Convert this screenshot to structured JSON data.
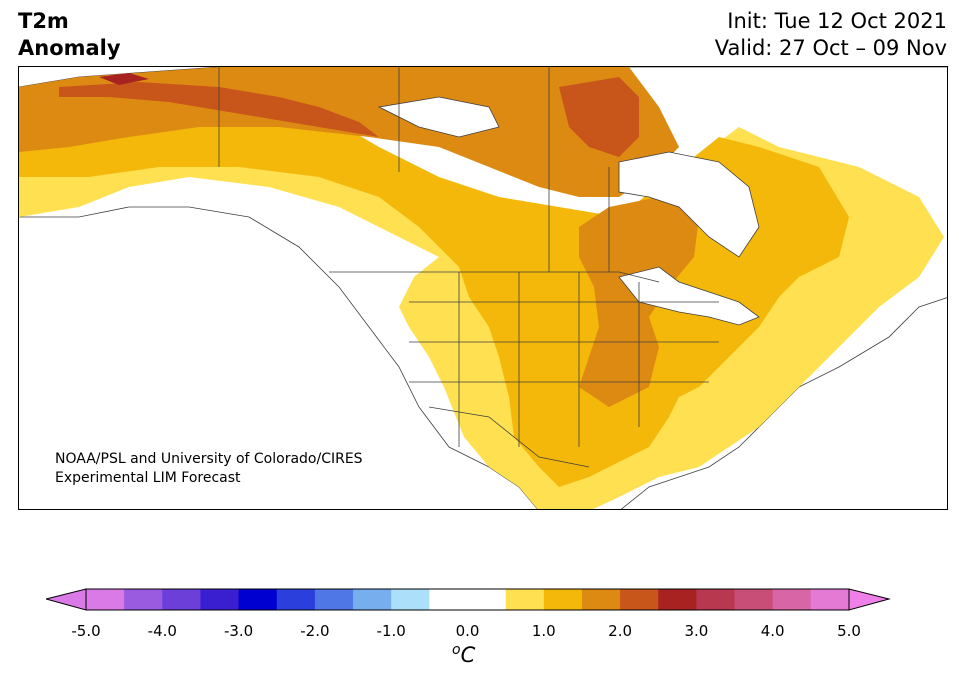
{
  "header": {
    "title_line1": "T2m",
    "title_line2": "Anomaly",
    "init": "Init: Tue 12 Oct 2021",
    "valid": "Valid: 27 Oct – 09 Nov"
  },
  "credit": {
    "line1": "NOAA/PSL and University of Colorado/CIRES",
    "line2": "Experimental LIM Forecast"
  },
  "colorbar": {
    "unit": "C",
    "unit_prefix": "o",
    "bins": [
      {
        "from": -5.0,
        "to": -4.5,
        "color": "#d97ae6"
      },
      {
        "from": -4.5,
        "to": -4.0,
        "color": "#9a5be0"
      },
      {
        "from": -4.0,
        "to": -3.5,
        "color": "#6b3fd8"
      },
      {
        "from": -3.5,
        "to": -3.0,
        "color": "#3a1fd0"
      },
      {
        "from": -3.0,
        "to": -2.5,
        "color": "#0000d0"
      },
      {
        "from": -2.5,
        "to": -2.0,
        "color": "#2a3fdc"
      },
      {
        "from": -2.0,
        "to": -1.5,
        "color": "#4f78e6"
      },
      {
        "from": -1.5,
        "to": -1.0,
        "color": "#76aeee"
      },
      {
        "from": -1.0,
        "to": -0.5,
        "color": "#ace0fa"
      },
      {
        "from": -0.5,
        "to": 0.5,
        "color": "#ffffff"
      },
      {
        "from": 0.5,
        "to": 1.0,
        "color": "#ffe050"
      },
      {
        "from": 1.0,
        "to": 1.5,
        "color": "#f3b80a"
      },
      {
        "from": 1.5,
        "to": 2.0,
        "color": "#dc8a12"
      },
      {
        "from": 2.0,
        "to": 2.5,
        "color": "#c8561a"
      },
      {
        "from": 2.5,
        "to": 3.0,
        "color": "#a82222"
      },
      {
        "from": 3.0,
        "to": 3.5,
        "color": "#b83850"
      },
      {
        "from": 3.5,
        "to": 4.0,
        "color": "#c84e78"
      },
      {
        "from": 4.0,
        "to": 4.5,
        "color": "#d866a6"
      },
      {
        "from": 4.5,
        "to": 5.0,
        "color": "#e47ad4"
      }
    ],
    "under_color": "#d97ae6",
    "over_color": "#ee80e8",
    "ticks": [
      "-5.0",
      "-4.0",
      "-3.0",
      "-2.0",
      "-1.0",
      "0.0",
      "1.0",
      "2.0",
      "3.0",
      "4.0",
      "5.0"
    ]
  },
  "map": {
    "region": "North America",
    "fill_colors": {
      "land_neutral": "#ffffff",
      "anomaly_1_0": "#ffe050",
      "anomaly_1_5": "#f3b80a",
      "anomaly_2_0": "#dc8a12",
      "anomaly_2_5": "#c8561a",
      "anomaly_3_0": "#a82222",
      "lakes": "#ffffff",
      "borders": "#404040"
    }
  }
}
